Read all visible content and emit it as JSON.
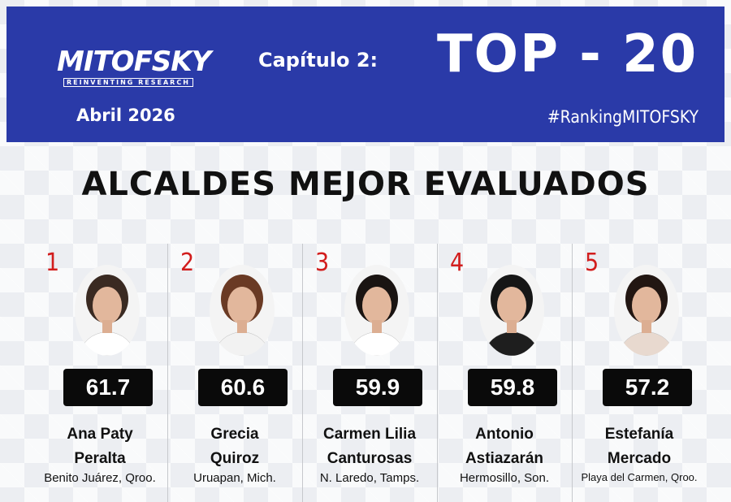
{
  "header": {
    "logo": "MITOFSKY",
    "tagline": "REINVENTING RESEARCH",
    "chapter": "Capítulo 2:",
    "top": "TOP - 20",
    "date": "Abril  2026",
    "hashtag": "#RankingMITOFSKY"
  },
  "title": "ALCALDES MEJOR EVALUADOS",
  "entries": [
    {
      "rank": 1,
      "score": 61.7,
      "name": [
        "Ana Paty",
        "Peralta"
      ],
      "place": "Benito Juárez, Qroo."
    },
    {
      "rank": 2,
      "score": 60.6,
      "name": [
        "Grecia",
        "Quiroz"
      ],
      "place": "Uruapan, Mich."
    },
    {
      "rank": 3,
      "score": 59.9,
      "name": [
        "Carmen Lilia",
        "Canturosas"
      ],
      "place": "N. Laredo, Tamps."
    },
    {
      "rank": 4,
      "score": 59.8,
      "name": [
        "Antonio",
        "Astiazarán"
      ],
      "place": "Hermosillo, Son."
    },
    {
      "rank": 5,
      "score": 57.2,
      "name": [
        "Estefanía",
        "Mercado"
      ],
      "place": "Playa del Carmen, Qroo."
    }
  ]
}
